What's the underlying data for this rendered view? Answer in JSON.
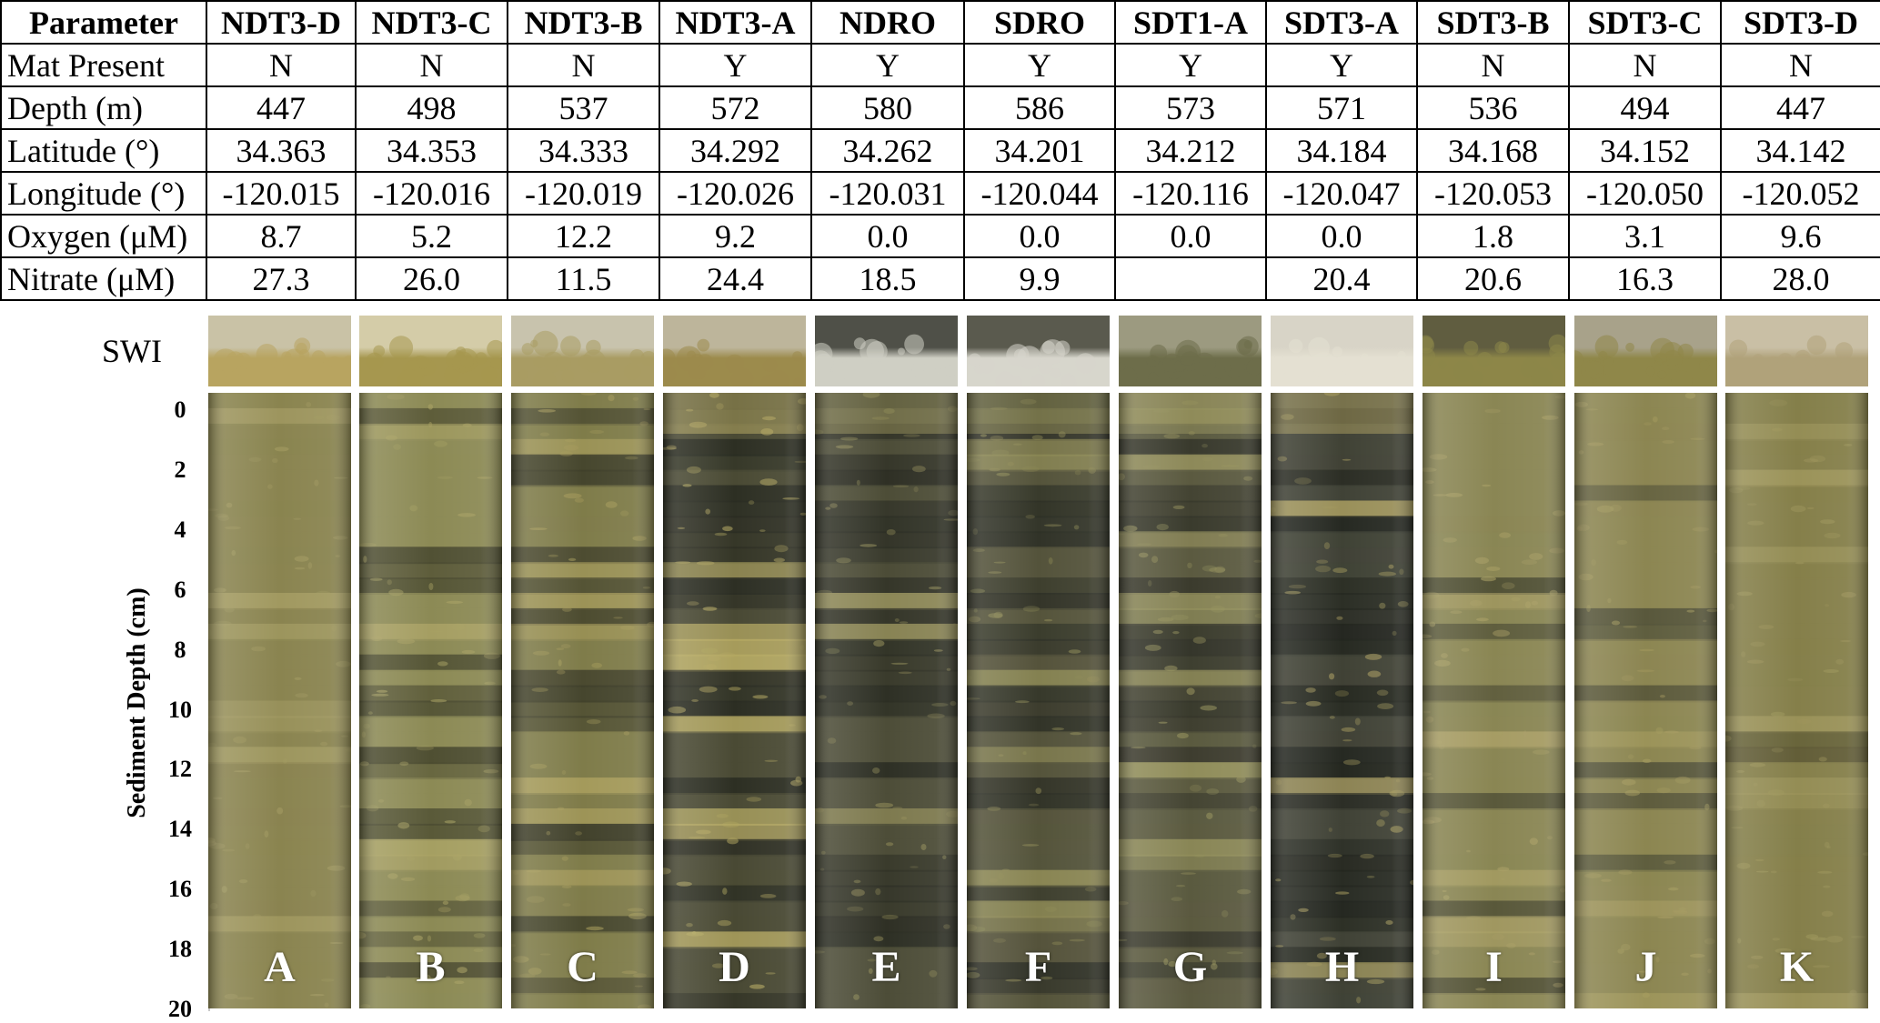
{
  "table": {
    "header_label": "Parameter",
    "sites": [
      "NDT3-D",
      "NDT3-C",
      "NDT3-B",
      "NDT3-A",
      "NDRO",
      "SDRO",
      "SDT1-A",
      "SDT3-A",
      "SDT3-B",
      "SDT3-C",
      "SDT3-D"
    ],
    "rows": [
      {
        "label": "Mat Present",
        "values": [
          "N",
          "N",
          "N",
          "Y",
          "Y",
          "Y",
          "Y",
          "Y",
          "N",
          "N",
          "N"
        ]
      },
      {
        "label": "Depth (m)",
        "values": [
          "447",
          "498",
          "537",
          "572",
          "580",
          "586",
          "573",
          "571",
          "536",
          "494",
          "447"
        ]
      },
      {
        "label": "Latitude (°)",
        "values": [
          "34.363",
          "34.353",
          "34.333",
          "34.292",
          "34.262",
          "34.201",
          "34.212",
          "34.184",
          "34.168",
          "34.152",
          "34.142"
        ]
      },
      {
        "label": "Longitude (°)",
        "values": [
          "-120.015",
          "-120.016",
          "-120.019",
          "-120.026",
          "-120.031",
          "-120.044",
          "-120.116",
          "-120.047",
          "-120.053",
          "-120.050",
          "-120.052"
        ]
      },
      {
        "label": "Oxygen (μM)",
        "values": [
          "8.7",
          "5.2",
          "12.2",
          "9.2",
          "0.0",
          "0.0",
          "0.0",
          "0.0",
          "1.8",
          "3.1",
          "9.6"
        ]
      },
      {
        "label": "Nitrate (μM)",
        "values": [
          "27.3",
          "26.0",
          "11.5",
          "24.4",
          "18.5",
          "9.9",
          "",
          "20.4",
          "20.6",
          "16.3",
          "28.0"
        ]
      }
    ]
  },
  "swi_label": "SWI",
  "depth_axis": {
    "title": "Sediment Depth (cm)",
    "ticks": [
      "0",
      "2",
      "4",
      "6",
      "8",
      "10",
      "12",
      "14",
      "16",
      "18",
      "20"
    ]
  },
  "cores": [
    {
      "letter": "A",
      "base": "#8a8450",
      "dark": "#5f5b35",
      "light": "#a39b62",
      "mat": false,
      "darkness": 0.05
    },
    {
      "letter": "B",
      "base": "#8c8a55",
      "dark": "#4a4a30",
      "light": "#a9a264",
      "mat": false,
      "darkness": 0.35
    },
    {
      "letter": "C",
      "base": "#7f7c4a",
      "dark": "#3f3f2a",
      "light": "#a79c5c",
      "mat": false,
      "darkness": 0.45
    },
    {
      "letter": "D",
      "base": "#4a4a34",
      "dark": "#2a2c22",
      "light": "#b4a862",
      "mat": true,
      "darkness": 0.75
    },
    {
      "letter": "E",
      "base": "#4d4d38",
      "dark": "#2c2e24",
      "light": "#8f8a58",
      "mat": true,
      "darkness": 0.7
    },
    {
      "letter": "F",
      "base": "#55543b",
      "dark": "#2e3026",
      "light": "#8e8a56",
      "mat": true,
      "darkness": 0.7
    },
    {
      "letter": "G",
      "base": "#5b5a40",
      "dark": "#34352a",
      "light": "#94905c",
      "mat": true,
      "darkness": 0.6
    },
    {
      "letter": "H",
      "base": "#404236",
      "dark": "#23261f",
      "light": "#a59a5e",
      "mat": true,
      "darkness": 0.8
    },
    {
      "letter": "I",
      "base": "#8a8654",
      "dark": "#4b4b33",
      "light": "#aaa066",
      "mat": false,
      "darkness": 0.35
    },
    {
      "letter": "J",
      "base": "#8c8652",
      "dark": "#56553a",
      "light": "#a69c60",
      "mat": false,
      "darkness": 0.2
    },
    {
      "letter": "K",
      "base": "#857f4a",
      "dark": "#5e5a36",
      "light": "#9d955b",
      "mat": false,
      "darkness": 0.1
    }
  ],
  "swi": [
    {
      "water": "#c9c2a6",
      "sed": "#b8a460"
    },
    {
      "water": "#d4cca8",
      "sed": "#a6974f"
    },
    {
      "water": "#c8c3ad",
      "sed": "#a99c63"
    },
    {
      "water": "#bdb59b",
      "sed": "#9c8b4c"
    },
    {
      "water": "#4f5048",
      "sed": "#cfcfc4"
    },
    {
      "water": "#5a5a4e",
      "sed": "#d7d6cc"
    },
    {
      "water": "#9c9a80",
      "sed": "#6d6d4a"
    },
    {
      "water": "#d8d4c7",
      "sed": "#e4e0d2"
    },
    {
      "water": "#605d40",
      "sed": "#8d8648"
    },
    {
      "water": "#a8a28a",
      "sed": "#8f8749"
    },
    {
      "water": "#c9bfa5",
      "sed": "#b0a27a"
    }
  ]
}
